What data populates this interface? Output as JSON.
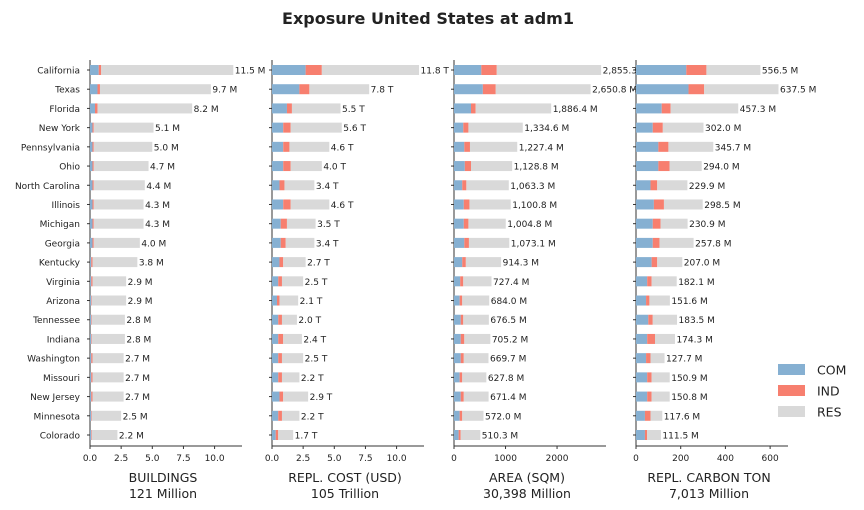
{
  "title": "Exposure United States at adm1",
  "colors": {
    "COM": "#86b0d2",
    "IND": "#f77f6f",
    "RES": "#d9d9d9"
  },
  "legend": [
    "COM",
    "IND",
    "RES"
  ],
  "chart_data": {
    "type": "bar",
    "orientation": "horizontal",
    "stacked": true,
    "categories": [
      "California",
      "Texas",
      "Florida",
      "New York",
      "Pennsylvania",
      "Ohio",
      "North Carolina",
      "Illinois",
      "Michigan",
      "Georgia",
      "Kentucky",
      "Virginia",
      "Arizona",
      "Tennessee",
      "Indiana",
      "Washington",
      "Missouri",
      "New Jersey",
      "Minnesota",
      "Colorado"
    ],
    "panels": [
      {
        "xlabel": "BUILDINGS",
        "total_label": "121 Million",
        "xlim": [
          0,
          12.2
        ],
        "xticks": [
          0,
          2.5,
          5,
          7.5,
          10
        ],
        "xtick_labels": [
          "0.0",
          "2.5",
          "5.0",
          "7.5",
          "10.0"
        ],
        "labels": [
          "11.5 M",
          "9.7 M",
          "8.2 M",
          "5.1 M",
          "5.0 M",
          "4.7 M",
          "4.4 M",
          "4.3 M",
          "4.3 M",
          "4.0 M",
          "3.8 M",
          "2.9 M",
          "2.9 M",
          "2.8 M",
          "2.8 M",
          "2.7 M",
          "2.7 M",
          "2.7 M",
          "2.5 M",
          "2.2 M"
        ],
        "series": [
          {
            "name": "COM",
            "values": [
              0.7,
              0.6,
              0.4,
              0.2,
              0.2,
              0.2,
              0.2,
              0.2,
              0.2,
              0.2,
              0.1,
              0.1,
              0.1,
              0.1,
              0.1,
              0.1,
              0.1,
              0.1,
              0.1,
              0.1
            ]
          },
          {
            "name": "IND",
            "values": [
              0.2,
              0.2,
              0.2,
              0.1,
              0.1,
              0.1,
              0.1,
              0.1,
              0.1,
              0.1,
              0.1,
              0.1,
              0.05,
              0.05,
              0.05,
              0.1,
              0.1,
              0.1,
              0.05,
              0.05
            ]
          },
          {
            "name": "RES",
            "values": [
              10.6,
              8.9,
              7.6,
              4.8,
              4.7,
              4.4,
              4.1,
              4.0,
              4.0,
              3.7,
              3.6,
              2.7,
              2.75,
              2.65,
              2.65,
              2.5,
              2.5,
              2.5,
              2.35,
              2.05
            ]
          }
        ]
      },
      {
        "xlabel": "REPL. COST (USD)",
        "total_label": "105 Trillion",
        "xlim": [
          0,
          12.2
        ],
        "xticks": [
          0,
          2.5,
          5,
          7.5,
          10
        ],
        "xtick_labels": [
          "0.0",
          "2.5",
          "5.0",
          "7.5",
          "10.0"
        ],
        "labels": [
          "11.8 T",
          "7.8 T",
          "5.5 T",
          "5.6 T",
          "4.6 T",
          "4.0 T",
          "3.4 T",
          "4.6 T",
          "3.5 T",
          "3.4 T",
          "2.7 T",
          "2.5 T",
          "2.1 T",
          "2.0 T",
          "2.4 T",
          "2.5 T",
          "2.2 T",
          "2.9 T",
          "2.2 T",
          "1.7 T"
        ],
        "series": [
          {
            "name": "COM",
            "values": [
              2.7,
              2.2,
              1.2,
              0.9,
              0.9,
              0.9,
              0.6,
              0.9,
              0.7,
              0.7,
              0.6,
              0.5,
              0.4,
              0.5,
              0.5,
              0.5,
              0.5,
              0.6,
              0.5,
              0.3
            ]
          },
          {
            "name": "IND",
            "values": [
              1.3,
              0.8,
              0.4,
              0.6,
              0.5,
              0.6,
              0.4,
              0.6,
              0.5,
              0.4,
              0.3,
              0.3,
              0.2,
              0.3,
              0.4,
              0.3,
              0.3,
              0.3,
              0.3,
              0.2
            ]
          },
          {
            "name": "RES",
            "values": [
              7.8,
              4.8,
              3.9,
              4.1,
              3.2,
              2.5,
              2.4,
              3.1,
              2.3,
              2.3,
              1.8,
              1.7,
              1.5,
              1.2,
              1.5,
              1.7,
              1.4,
              2.0,
              1.4,
              1.2
            ]
          }
        ]
      },
      {
        "xlabel": "AREA (SQM)",
        "total_label": "30,398 Million",
        "xlim": [
          0,
          2950
        ],
        "xticks": [
          0,
          1000,
          2000
        ],
        "xtick_labels": [
          "0",
          "1000",
          "2000"
        ],
        "labels": [
          "2,855.3 M",
          "2,650.8 M",
          "1,886.4 M",
          "1,334.6 M",
          "1,227.4 M",
          "1,128.8 M",
          "1,063.3 M",
          "1,100.8 M",
          "1,004.8 M",
          "1,073.1 M",
          "914.3 M",
          "727.4 M",
          "684.0 M",
          "676.5 M",
          "705.2 M",
          "669.7 M",
          "627.8 M",
          "671.4 M",
          "572.0 M",
          "510.3 M"
        ],
        "series": [
          {
            "name": "COM",
            "values": [
              530,
              560,
              330,
              180,
              200,
              210,
              160,
              190,
              190,
              200,
              160,
              120,
              110,
              130,
              130,
              130,
              110,
              130,
              110,
              90
            ]
          },
          {
            "name": "IND",
            "values": [
              300,
              250,
              90,
              100,
              110,
              120,
              80,
              110,
              90,
              90,
              70,
              60,
              50,
              50,
              70,
              60,
              50,
              60,
              50,
              40
            ]
          },
          {
            "name": "RES",
            "values": [
              2025.3,
              1840.8,
              1466.4,
              1054.6,
              917.4,
              798.8,
              823.3,
              800.8,
              724.8,
              783.1,
              684.3,
              547.4,
              524.0,
              496.5,
              505.2,
              479.7,
              467.8,
              481.4,
              412.0,
              380.3
            ]
          }
        ]
      },
      {
        "xlabel": "REPL. CARBON TON",
        "total_label": "7,013 Million",
        "xlim": [
          0,
          680
        ],
        "xticks": [
          0,
          200,
          400,
          600
        ],
        "xtick_labels": [
          "0",
          "200",
          "400",
          "600"
        ],
        "labels": [
          "556.5 M",
          "637.5 M",
          "457.3 M",
          "302.0 M",
          "345.7 M",
          "294.0 M",
          "229.9 M",
          "298.5 M",
          "230.9 M",
          "257.8 M",
          "207.0 M",
          "182.1 M",
          "151.6 M",
          "183.5 M",
          "174.3 M",
          "127.7 M",
          "150.9 M",
          "150.8 M",
          "117.6 M",
          "111.5 M"
        ],
        "series": [
          {
            "name": "COM",
            "values": [
              225,
              235,
              115,
              75,
              100,
              100,
              65,
              80,
              75,
              75,
              70,
              50,
              45,
              55,
              50,
              45,
              50,
              50,
              40,
              40
            ]
          },
          {
            "name": "IND",
            "values": [
              90,
              70,
              40,
              45,
              45,
              50,
              30,
              45,
              35,
              30,
              25,
              20,
              15,
              20,
              35,
              20,
              20,
              20,
              25,
              10
            ]
          },
          {
            "name": "RES",
            "values": [
              241.5,
              332.5,
              302.3,
              182.0,
              200.7,
              144.0,
              134.9,
              173.5,
              120.9,
              152.8,
              112.0,
              112.1,
              91.6,
              108.5,
              89.3,
              62.7,
              80.9,
              80.8,
              52.6,
              61.5
            ]
          }
        ]
      }
    ]
  }
}
